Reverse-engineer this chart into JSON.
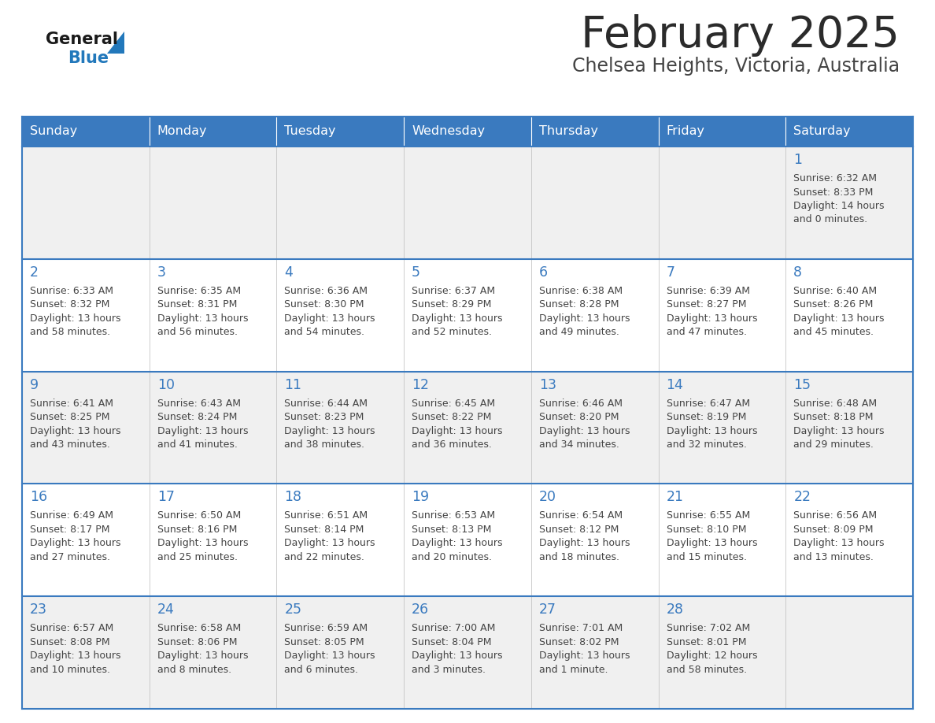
{
  "title": "February 2025",
  "subtitle": "Chelsea Heights, Victoria, Australia",
  "days_of_week": [
    "Sunday",
    "Monday",
    "Tuesday",
    "Wednesday",
    "Thursday",
    "Friday",
    "Saturday"
  ],
  "header_bg": "#3a7abf",
  "header_text": "#ffffff",
  "row_bg_even": "#f0f0f0",
  "row_bg_odd": "#ffffff",
  "day_num_color": "#3a7abf",
  "text_color": "#444444",
  "border_color": "#3a7abf",
  "logo_general_color": "#1a1a1a",
  "logo_blue_color": "#2278bb",
  "weeks": [
    {
      "days": [
        {
          "date": null,
          "info": null
        },
        {
          "date": null,
          "info": null
        },
        {
          "date": null,
          "info": null
        },
        {
          "date": null,
          "info": null
        },
        {
          "date": null,
          "info": null
        },
        {
          "date": null,
          "info": null
        },
        {
          "date": 1,
          "info": {
            "sunrise": "6:32 AM",
            "sunset": "8:33 PM",
            "daylight": "14 hours\nand 0 minutes."
          }
        }
      ]
    },
    {
      "days": [
        {
          "date": 2,
          "info": {
            "sunrise": "6:33 AM",
            "sunset": "8:32 PM",
            "daylight": "13 hours\nand 58 minutes."
          }
        },
        {
          "date": 3,
          "info": {
            "sunrise": "6:35 AM",
            "sunset": "8:31 PM",
            "daylight": "13 hours\nand 56 minutes."
          }
        },
        {
          "date": 4,
          "info": {
            "sunrise": "6:36 AM",
            "sunset": "8:30 PM",
            "daylight": "13 hours\nand 54 minutes."
          }
        },
        {
          "date": 5,
          "info": {
            "sunrise": "6:37 AM",
            "sunset": "8:29 PM",
            "daylight": "13 hours\nand 52 minutes."
          }
        },
        {
          "date": 6,
          "info": {
            "sunrise": "6:38 AM",
            "sunset": "8:28 PM",
            "daylight": "13 hours\nand 49 minutes."
          }
        },
        {
          "date": 7,
          "info": {
            "sunrise": "6:39 AM",
            "sunset": "8:27 PM",
            "daylight": "13 hours\nand 47 minutes."
          }
        },
        {
          "date": 8,
          "info": {
            "sunrise": "6:40 AM",
            "sunset": "8:26 PM",
            "daylight": "13 hours\nand 45 minutes."
          }
        }
      ]
    },
    {
      "days": [
        {
          "date": 9,
          "info": {
            "sunrise": "6:41 AM",
            "sunset": "8:25 PM",
            "daylight": "13 hours\nand 43 minutes."
          }
        },
        {
          "date": 10,
          "info": {
            "sunrise": "6:43 AM",
            "sunset": "8:24 PM",
            "daylight": "13 hours\nand 41 minutes."
          }
        },
        {
          "date": 11,
          "info": {
            "sunrise": "6:44 AM",
            "sunset": "8:23 PM",
            "daylight": "13 hours\nand 38 minutes."
          }
        },
        {
          "date": 12,
          "info": {
            "sunrise": "6:45 AM",
            "sunset": "8:22 PM",
            "daylight": "13 hours\nand 36 minutes."
          }
        },
        {
          "date": 13,
          "info": {
            "sunrise": "6:46 AM",
            "sunset": "8:20 PM",
            "daylight": "13 hours\nand 34 minutes."
          }
        },
        {
          "date": 14,
          "info": {
            "sunrise": "6:47 AM",
            "sunset": "8:19 PM",
            "daylight": "13 hours\nand 32 minutes."
          }
        },
        {
          "date": 15,
          "info": {
            "sunrise": "6:48 AM",
            "sunset": "8:18 PM",
            "daylight": "13 hours\nand 29 minutes."
          }
        }
      ]
    },
    {
      "days": [
        {
          "date": 16,
          "info": {
            "sunrise": "6:49 AM",
            "sunset": "8:17 PM",
            "daylight": "13 hours\nand 27 minutes."
          }
        },
        {
          "date": 17,
          "info": {
            "sunrise": "6:50 AM",
            "sunset": "8:16 PM",
            "daylight": "13 hours\nand 25 minutes."
          }
        },
        {
          "date": 18,
          "info": {
            "sunrise": "6:51 AM",
            "sunset": "8:14 PM",
            "daylight": "13 hours\nand 22 minutes."
          }
        },
        {
          "date": 19,
          "info": {
            "sunrise": "6:53 AM",
            "sunset": "8:13 PM",
            "daylight": "13 hours\nand 20 minutes."
          }
        },
        {
          "date": 20,
          "info": {
            "sunrise": "6:54 AM",
            "sunset": "8:12 PM",
            "daylight": "13 hours\nand 18 minutes."
          }
        },
        {
          "date": 21,
          "info": {
            "sunrise": "6:55 AM",
            "sunset": "8:10 PM",
            "daylight": "13 hours\nand 15 minutes."
          }
        },
        {
          "date": 22,
          "info": {
            "sunrise": "6:56 AM",
            "sunset": "8:09 PM",
            "daylight": "13 hours\nand 13 minutes."
          }
        }
      ]
    },
    {
      "days": [
        {
          "date": 23,
          "info": {
            "sunrise": "6:57 AM",
            "sunset": "8:08 PM",
            "daylight": "13 hours\nand 10 minutes."
          }
        },
        {
          "date": 24,
          "info": {
            "sunrise": "6:58 AM",
            "sunset": "8:06 PM",
            "daylight": "13 hours\nand 8 minutes."
          }
        },
        {
          "date": 25,
          "info": {
            "sunrise": "6:59 AM",
            "sunset": "8:05 PM",
            "daylight": "13 hours\nand 6 minutes."
          }
        },
        {
          "date": 26,
          "info": {
            "sunrise": "7:00 AM",
            "sunset": "8:04 PM",
            "daylight": "13 hours\nand 3 minutes."
          }
        },
        {
          "date": 27,
          "info": {
            "sunrise": "7:01 AM",
            "sunset": "8:02 PM",
            "daylight": "13 hours\nand 1 minute."
          }
        },
        {
          "date": 28,
          "info": {
            "sunrise": "7:02 AM",
            "sunset": "8:01 PM",
            "daylight": "12 hours\nand 58 minutes."
          }
        },
        {
          "date": null,
          "info": null
        }
      ]
    }
  ]
}
